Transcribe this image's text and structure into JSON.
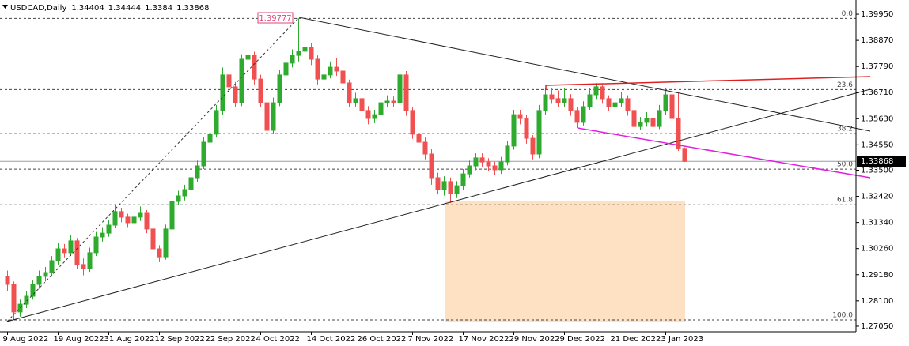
{
  "chart_data": {
    "type": "candlestick",
    "symbol": "USDCAD,Daily",
    "categories": [
      "9 Aug 2022",
      null,
      null,
      null,
      null,
      null,
      null,
      null,
      "19 Aug 2022",
      null,
      null,
      null,
      null,
      null,
      null,
      null,
      "31 Aug 2022",
      null,
      null,
      null,
      null,
      null,
      null,
      null,
      "12 Sep 2022",
      null,
      null,
      null,
      null,
      null,
      null,
      null,
      "22 Sep 2022",
      null,
      null,
      null,
      null,
      null,
      null,
      null,
      "4 Oct 2022",
      null,
      null,
      null,
      null,
      null,
      null,
      null,
      "14 Oct 2022",
      null,
      null,
      null,
      null,
      null,
      null,
      null,
      "26 Oct 2022",
      null,
      null,
      null,
      null,
      null,
      null,
      null,
      "7 Nov 2022",
      null,
      null,
      null,
      null,
      null,
      null,
      null,
      "17 Nov 2022",
      null,
      null,
      null,
      null,
      null,
      null,
      null,
      "29 Nov 2022",
      null,
      null,
      null,
      null,
      null,
      null,
      null,
      "9 Dec 2022",
      null,
      null,
      null,
      null,
      null,
      null,
      null,
      "21 Dec 2022",
      null,
      null,
      null,
      null,
      null,
      null,
      null,
      "3 Jan 2023",
      null,
      null,
      null
    ],
    "open": [
      1.2911,
      1.2878,
      1.2764,
      1.2796,
      1.2829,
      1.2878,
      1.2911,
      1.2927,
      1.2976,
      1.3025,
      1.3009,
      1.3058,
      1.296,
      1.2943,
      1.3009,
      1.3074,
      1.309,
      1.3123,
      1.3179,
      1.3156,
      1.3133,
      1.3156,
      1.3172,
      1.3107,
      1.3025,
      1.2992,
      1.3107,
      1.3221,
      1.3244,
      1.327,
      1.3319,
      1.3368,
      1.3466,
      1.3499,
      1.3597,
      1.3744,
      1.3695,
      1.3629,
      1.3809,
      1.3825,
      1.3727,
      1.3629,
      1.3515,
      1.3629,
      1.3744,
      1.3793,
      1.3825,
      1.3842,
      1.3858,
      1.3809,
      1.3727,
      1.3744,
      1.3776,
      1.376,
      1.3711,
      1.3629,
      1.3646,
      1.3597,
      1.3564,
      1.358,
      1.3629,
      1.3636,
      1.3629,
      1.3744,
      1.3597,
      1.3499,
      1.3466,
      1.3417,
      1.3319,
      1.327,
      1.3303,
      1.3254,
      1.3286,
      1.3335,
      1.3368,
      1.3401,
      1.3384,
      1.3368,
      1.3352,
      1.3384,
      1.345,
      1.358,
      1.3564,
      1.3482,
      1.3417,
      1.3597,
      1.3662,
      1.3646,
      1.3629,
      1.3646,
      1.3597,
      1.3548,
      1.3613,
      1.3662,
      1.3695,
      1.3646,
      1.3613,
      1.3629,
      1.3646,
      1.3597,
      1.3531,
      1.3548,
      1.3564,
      1.3531,
      1.3597,
      1.3662,
      1.3564,
      1.34404
    ],
    "high": [
      1.2935,
      1.289,
      1.2815,
      1.285,
      1.2895,
      1.2935,
      1.295,
      1.2995,
      1.305,
      1.3045,
      1.308,
      1.307,
      1.2985,
      1.303,
      1.3095,
      1.3115,
      1.3145,
      1.321,
      1.3195,
      1.317,
      1.318,
      1.32,
      1.3185,
      1.312,
      1.304,
      1.3125,
      1.324,
      1.3265,
      1.329,
      1.334,
      1.339,
      1.3485,
      1.352,
      1.362,
      1.3775,
      1.376,
      1.3715,
      1.383,
      1.384,
      1.384,
      1.3745,
      1.3645,
      1.365,
      1.3765,
      1.3815,
      1.385,
      1.39777,
      1.389,
      1.3875,
      1.3825,
      1.377,
      1.38,
      1.3815,
      1.378,
      1.3725,
      1.367,
      1.366,
      1.3615,
      1.36,
      1.365,
      1.366,
      1.3655,
      1.38,
      1.376,
      1.361,
      1.352,
      1.3485,
      1.344,
      1.334,
      1.3325,
      1.332,
      1.3305,
      1.3355,
      1.339,
      1.342,
      1.342,
      1.34,
      1.3385,
      1.3405,
      1.347,
      1.36,
      1.36,
      1.358,
      1.3495,
      1.362,
      1.369,
      1.369,
      1.368,
      1.369,
      1.3665,
      1.361,
      1.3635,
      1.369,
      1.371,
      1.3705,
      1.366,
      1.365,
      1.3675,
      1.366,
      1.361,
      1.357,
      1.359,
      1.358,
      1.362,
      1.369,
      1.368,
      1.3675,
      1.34444
    ],
    "low": [
      1.285,
      1.2731,
      1.2745,
      1.278,
      1.2815,
      1.286,
      1.289,
      1.291,
      1.296,
      1.299,
      1.2995,
      1.294,
      1.2915,
      1.293,
      1.2995,
      1.3055,
      1.3075,
      1.311,
      1.3135,
      1.3115,
      1.312,
      1.314,
      1.309,
      1.3005,
      1.297,
      1.298,
      1.3095,
      1.3205,
      1.3225,
      1.3255,
      1.33,
      1.3355,
      1.345,
      1.3485,
      1.358,
      1.3675,
      1.361,
      1.3615,
      1.3785,
      1.3705,
      1.361,
      1.3495,
      1.35,
      1.3615,
      1.3725,
      1.3775,
      1.38,
      1.382,
      1.3785,
      1.3705,
      1.371,
      1.373,
      1.374,
      1.369,
      1.361,
      1.361,
      1.3575,
      1.354,
      1.3545,
      1.3565,
      1.361,
      1.361,
      1.3615,
      1.3575,
      1.348,
      1.3445,
      1.3395,
      1.329,
      1.325,
      1.3245,
      1.3215,
      1.3235,
      1.327,
      1.332,
      1.335,
      1.3365,
      1.3345,
      1.333,
      1.3335,
      1.337,
      1.3435,
      1.354,
      1.346,
      1.3395,
      1.34,
      1.358,
      1.3625,
      1.361,
      1.361,
      1.3575,
      1.3525,
      1.3535,
      1.36,
      1.3645,
      1.3625,
      1.3595,
      1.3595,
      1.361,
      1.3575,
      1.351,
      1.3515,
      1.353,
      1.351,
      1.352,
      1.358,
      1.3545,
      1.343,
      1.3384
    ],
    "close": [
      1.2878,
      1.2764,
      1.2796,
      1.2829,
      1.2878,
      1.2911,
      1.2927,
      1.2976,
      1.3025,
      1.3009,
      1.3058,
      1.296,
      1.2943,
      1.3009,
      1.3074,
      1.309,
      1.3123,
      1.3179,
      1.3156,
      1.3133,
      1.3156,
      1.3172,
      1.3107,
      1.3025,
      1.2992,
      1.3107,
      1.3221,
      1.3244,
      1.327,
      1.3319,
      1.3368,
      1.3466,
      1.3499,
      1.3597,
      1.3744,
      1.3695,
      1.3629,
      1.3809,
      1.3825,
      1.3727,
      1.3629,
      1.3515,
      1.3629,
      1.3744,
      1.3793,
      1.3825,
      1.3842,
      1.3858,
      1.3809,
      1.3727,
      1.3744,
      1.3776,
      1.376,
      1.3711,
      1.3629,
      1.3646,
      1.3597,
      1.3564,
      1.358,
      1.3629,
      1.3636,
      1.3629,
      1.3744,
      1.3597,
      1.3499,
      1.3466,
      1.3417,
      1.3319,
      1.327,
      1.3303,
      1.3254,
      1.3286,
      1.3335,
      1.3368,
      1.3401,
      1.3384,
      1.3368,
      1.3352,
      1.3384,
      1.345,
      1.358,
      1.3564,
      1.3482,
      1.3417,
      1.3597,
      1.3662,
      1.3646,
      1.3629,
      1.3646,
      1.3597,
      1.3548,
      1.3613,
      1.3662,
      1.3695,
      1.3646,
      1.3613,
      1.3629,
      1.3646,
      1.3597,
      1.3531,
      1.3548,
      1.3564,
      1.3531,
      1.3597,
      1.3662,
      1.3564,
      1.34404,
      1.33868
    ],
    "colors": {
      "up": "#2eaa2e",
      "down": "#f05050"
    },
    "ylim": [
      1.2682,
      1.4054
    ],
    "yticks": [
      {
        "value": 1.3995,
        "label": "1.39950"
      },
      {
        "value": 1.3887,
        "label": "1.38870"
      },
      {
        "value": 1.3779,
        "label": "1.37790"
      },
      {
        "value": 1.3671,
        "label": "1.36710"
      },
      {
        "value": 1.3563,
        "label": "1.35630"
      },
      {
        "value": 1.3455,
        "label": "1.34550"
      },
      {
        "value": 1.335,
        "label": "1.33500"
      },
      {
        "value": 1.3242,
        "label": "1.32420"
      },
      {
        "value": 1.3134,
        "label": "1.31340"
      },
      {
        "value": 1.3026,
        "label": "1.30260"
      },
      {
        "value": 1.2918,
        "label": "1.29180"
      },
      {
        "value": 1.281,
        "label": "1.28100"
      },
      {
        "value": 1.2705,
        "label": "1.27050"
      }
    ],
    "fibo": {
      "high": 1.39777,
      "low": 1.2731,
      "color": "#444444",
      "levels": [
        {
          "value": 0,
          "label": "0.0"
        },
        {
          "value": 23.6,
          "label": "23.6"
        },
        {
          "value": 38.2,
          "label": "38.2"
        },
        {
          "value": 50,
          "label": "50.0"
        },
        {
          "value": 61.8,
          "label": "61.8"
        },
        {
          "value": 100,
          "label": "100.0"
        }
      ]
    }
  }
}
